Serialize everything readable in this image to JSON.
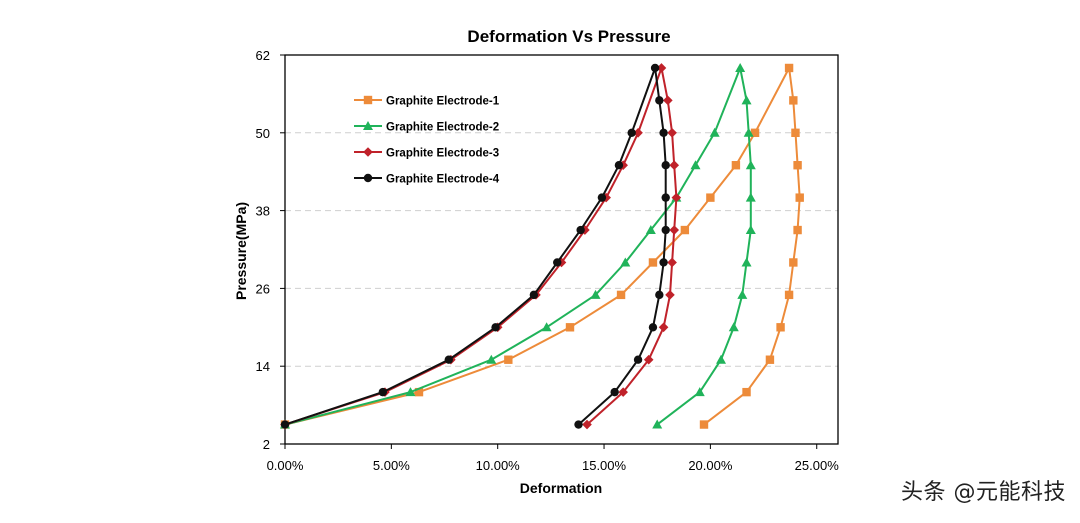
{
  "watermark": "头条 @元能科技",
  "chart_data": {
    "type": "line",
    "title": "Deformation Vs Pressure",
    "xlabel": "Deformation",
    "ylabel": "Pressure(MPa)",
    "xlim": [
      0,
      0.26
    ],
    "ylim": [
      2,
      62
    ],
    "x_ticks": [
      "0.00%",
      "5.00%",
      "10.00%",
      "15.00%",
      "20.00%",
      "25.00%"
    ],
    "x_tick_values": [
      0,
      0.05,
      0.1,
      0.15,
      0.2,
      0.25
    ],
    "y_ticks": [
      "2",
      "14",
      "26",
      "38",
      "50",
      "62"
    ],
    "y_tick_values": [
      2,
      14,
      26,
      38,
      50,
      62
    ],
    "grid": "horizontal dashed",
    "legend_position": "top-left",
    "series": [
      {
        "name": "Graphite Electrode-1",
        "color": "#ED8B3A",
        "marker": "square",
        "x": [
          0.0,
          0.063,
          0.105,
          0.134,
          0.158,
          0.173,
          0.188,
          0.2,
          0.212,
          0.221,
          0.237,
          0.239,
          0.24,
          0.241,
          0.242,
          0.241,
          0.239,
          0.237,
          0.233,
          0.228,
          0.217,
          0.197
        ],
        "y": [
          5,
          10,
          15,
          20,
          25,
          30,
          35,
          40,
          45,
          50,
          60,
          55,
          50,
          45,
          40,
          35,
          30,
          25,
          20,
          15,
          10,
          5
        ]
      },
      {
        "name": "Graphite Electrode-2",
        "color": "#20B35A",
        "marker": "triangle",
        "x": [
          0.0,
          0.059,
          0.097,
          0.123,
          0.146,
          0.16,
          0.172,
          0.184,
          0.193,
          0.202,
          0.214,
          0.217,
          0.218,
          0.219,
          0.219,
          0.219,
          0.217,
          0.215,
          0.211,
          0.205,
          0.195,
          0.175
        ],
        "y": [
          5,
          10,
          15,
          20,
          25,
          30,
          35,
          40,
          45,
          50,
          60,
          55,
          50,
          45,
          40,
          35,
          30,
          25,
          20,
          15,
          10,
          5
        ]
      },
      {
        "name": "Graphite Electrode-3",
        "color": "#C0222A",
        "marker": "diamond",
        "x": [
          0.0,
          0.047,
          0.078,
          0.1,
          0.118,
          0.13,
          0.141,
          0.151,
          0.159,
          0.166,
          0.177,
          0.18,
          0.182,
          0.183,
          0.184,
          0.183,
          0.182,
          0.181,
          0.178,
          0.171,
          0.159,
          0.142
        ],
        "y": [
          5,
          10,
          15,
          20,
          25,
          30,
          35,
          40,
          45,
          50,
          60,
          55,
          50,
          45,
          40,
          35,
          30,
          25,
          20,
          15,
          10,
          5
        ]
      },
      {
        "name": "Graphite Electrode-4",
        "color": "#111111",
        "marker": "circle",
        "x": [
          0.0,
          0.046,
          0.077,
          0.099,
          0.117,
          0.128,
          0.139,
          0.149,
          0.157,
          0.163,
          0.174,
          0.176,
          0.178,
          0.179,
          0.179,
          0.179,
          0.178,
          0.176,
          0.173,
          0.166,
          0.155,
          0.138
        ],
        "y": [
          5,
          10,
          15,
          20,
          25,
          30,
          35,
          40,
          45,
          50,
          60,
          55,
          50,
          45,
          40,
          35,
          30,
          25,
          20,
          15,
          10,
          5
        ]
      }
    ]
  }
}
